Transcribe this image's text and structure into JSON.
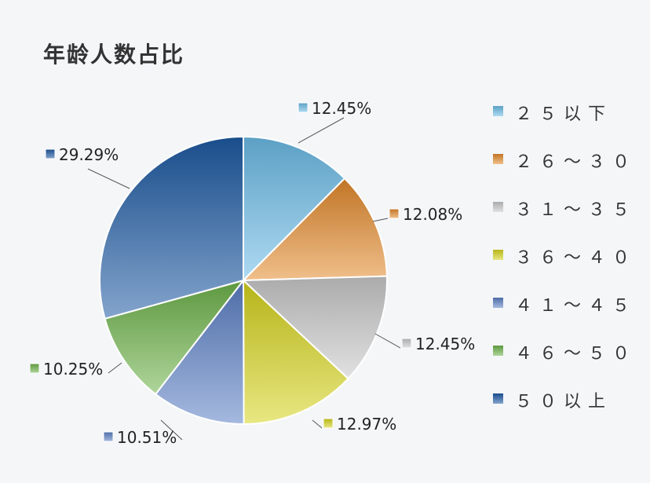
{
  "chart_data": {
    "type": "pie",
    "title": "年龄人数占比",
    "categories": [
      "２５以下",
      "２６～３０",
      "３１～３５",
      "３６～４０",
      "４１～４５",
      "４６～５０",
      "５０以上"
    ],
    "values": [
      12.45,
      12.08,
      12.45,
      12.97,
      10.51,
      10.25,
      29.29
    ],
    "labels": [
      "12.45%",
      "12.08%",
      "12.45%",
      "12.97%",
      "10.51%",
      "10.25%",
      "29.29%"
    ],
    "colors": [
      "#6cbce8",
      "#e38a2c",
      "#c9c9c9",
      "#d6d41c",
      "#5b7fc4",
      "#6db34a",
      "#1d5aa3"
    ],
    "legend_position": "right",
    "start": "top",
    "direction": "clockwise"
  }
}
